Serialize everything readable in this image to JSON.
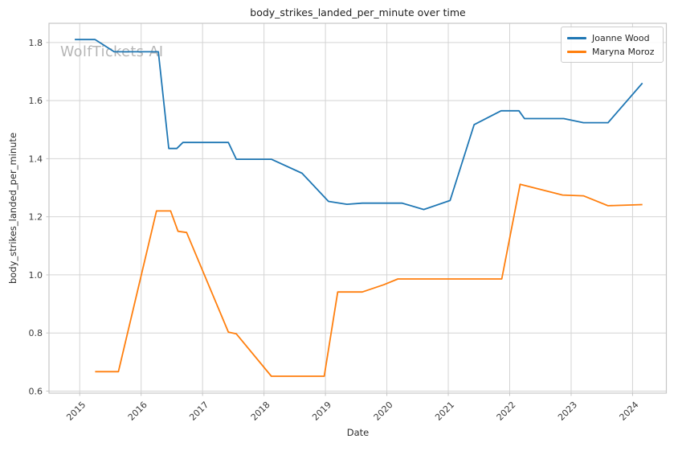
{
  "title": "body_strikes_landed_per_minute over time",
  "watermark": "WolfTickets AI",
  "legend": {
    "position": "upper right",
    "items": [
      {
        "label": "Joanne Wood",
        "color": "#1f77b4"
      },
      {
        "label": "Maryna Moroz",
        "color": "#ff7f0e"
      }
    ]
  },
  "chart_data": {
    "type": "line",
    "title": "body_strikes_landed_per_minute over time",
    "xlabel": "Date",
    "ylabel": "body_strikes_landed_per_minute",
    "xlim": [
      2014.5,
      2024.55
    ],
    "ylim": [
      0.593,
      1.866
    ],
    "x_ticks": [
      2015,
      2016,
      2017,
      2018,
      2019,
      2020,
      2021,
      2022,
      2023,
      2024
    ],
    "y_ticks": [
      0.6,
      0.8,
      1.0,
      1.2,
      1.4,
      1.6,
      1.8
    ],
    "grid": true,
    "series": [
      {
        "name": "Joanne Wood",
        "color": "#1f77b4",
        "points": [
          [
            2014.92,
            1.81
          ],
          [
            2015.25,
            1.81
          ],
          [
            2015.56,
            1.768
          ],
          [
            2016.28,
            1.768
          ],
          [
            2016.45,
            1.435
          ],
          [
            2016.58,
            1.435
          ],
          [
            2016.68,
            1.456
          ],
          [
            2017.42,
            1.456
          ],
          [
            2017.55,
            1.398
          ],
          [
            2018.12,
            1.398
          ],
          [
            2018.62,
            1.35
          ],
          [
            2019.05,
            1.253
          ],
          [
            2019.35,
            1.243
          ],
          [
            2019.6,
            1.247
          ],
          [
            2020.25,
            1.247
          ],
          [
            2020.6,
            1.225
          ],
          [
            2021.03,
            1.256
          ],
          [
            2021.42,
            1.517
          ],
          [
            2021.86,
            1.565
          ],
          [
            2022.15,
            1.565
          ],
          [
            2022.24,
            1.538
          ],
          [
            2022.88,
            1.538
          ],
          [
            2023.2,
            1.524
          ],
          [
            2023.6,
            1.524
          ],
          [
            2024.16,
            1.66
          ]
        ]
      },
      {
        "name": "Maryna Moroz",
        "color": "#ff7f0e",
        "points": [
          [
            2015.25,
            0.667
          ],
          [
            2015.63,
            0.667
          ],
          [
            2016.25,
            1.22
          ],
          [
            2016.48,
            1.22
          ],
          [
            2016.6,
            1.15
          ],
          [
            2016.74,
            1.146
          ],
          [
            2017.42,
            0.803
          ],
          [
            2017.55,
            0.797
          ],
          [
            2018.12,
            0.651
          ],
          [
            2018.98,
            0.651
          ],
          [
            2019.2,
            0.941
          ],
          [
            2019.6,
            0.941
          ],
          [
            2019.95,
            0.966
          ],
          [
            2020.18,
            0.986
          ],
          [
            2021.87,
            0.986
          ],
          [
            2022.17,
            1.312
          ],
          [
            2022.86,
            1.275
          ],
          [
            2023.2,
            1.272
          ],
          [
            2023.6,
            1.238
          ],
          [
            2024.16,
            1.242
          ]
        ]
      }
    ]
  }
}
